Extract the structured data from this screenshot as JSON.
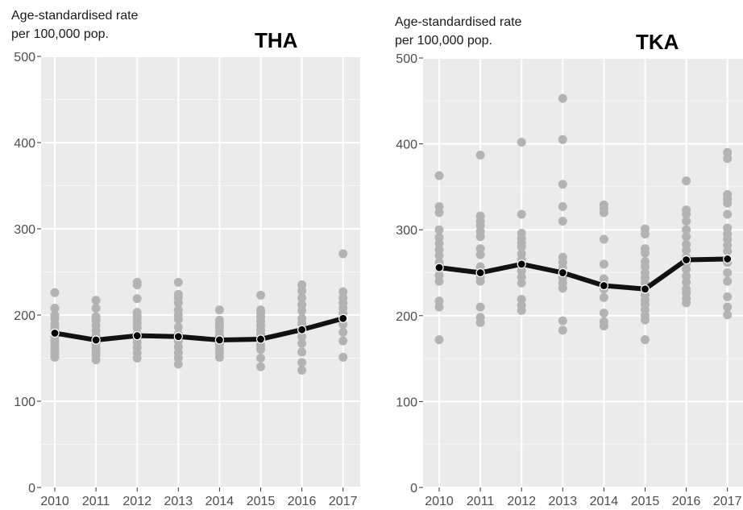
{
  "chart_data": [
    {
      "type": "line",
      "title": "THA",
      "ylabel_line1": "Age-standardised rate",
      "ylabel_line2": "per 100,000 pop.",
      "ylim": [
        0,
        500
      ],
      "yticks": [
        "0",
        "100",
        "200",
        "300",
        "400",
        "500"
      ],
      "categories": [
        "2010",
        "2011",
        "2012",
        "2013",
        "2014",
        "2015",
        "2016",
        "2017"
      ],
      "grid": true,
      "series": [
        {
          "kind": "line",
          "color": "#111111",
          "values": [
            179,
            171,
            176,
            175,
            171,
            172,
            183,
            196
          ]
        },
        {
          "kind": "points",
          "color": "#b3b3b3",
          "values": [
            [
              226,
              208,
              200,
              196,
              190,
              186,
              182,
              175,
              170,
              166,
              162,
              158,
              155,
              151
            ],
            [
              217,
              208,
              198,
              194,
              188,
              182,
              176,
              171,
              166,
              162,
              158,
              154,
              148
            ],
            [
              238,
              235,
              219,
              203,
              199,
              195,
              190,
              185,
              178,
              173,
              168,
              162,
              156,
              150
            ],
            [
              238,
              224,
              220,
              214,
              206,
              200,
              195,
              186,
              178,
              170,
              163,
              156,
              150,
              143
            ],
            [
              206,
              194,
              190,
              186,
              181,
              176,
              170,
              166,
              161,
              156,
              151
            ],
            [
              223,
              206,
              203,
              198,
              193,
              188,
              183,
              178,
              171,
              165,
              160,
              150,
              140
            ],
            [
              235,
              228,
              220,
              212,
              205,
              196,
              190,
              183,
              175,
              167,
              157,
              145,
              136
            ],
            [
              271,
              227,
              220,
              214,
              208,
              202,
              196,
              189,
              180,
              170,
              151
            ]
          ]
        }
      ]
    },
    {
      "type": "line",
      "title": "TKA",
      "ylabel_line1": "Age-standardised rate",
      "ylabel_line2": "per 100,000 pop.",
      "ylim": [
        0,
        500
      ],
      "yticks": [
        "0",
        "100",
        "200",
        "300",
        "400",
        "500"
      ],
      "categories": [
        "2010",
        "2011",
        "2012",
        "2013",
        "2014",
        "2015",
        "2016",
        "2017"
      ],
      "grid": true,
      "series": [
        {
          "kind": "line",
          "color": "#111111",
          "values": [
            256,
            250,
            260,
            250,
            235,
            231,
            265,
            266
          ]
        },
        {
          "kind": "points",
          "color": "#b3b3b3",
          "values": [
            [
              363,
              327,
              320,
              300,
              291,
              284,
              277,
              270,
              262,
              255,
              247,
              240,
              217,
              210,
              172
            ],
            [
              387,
              316,
              310,
              305,
              298,
              292,
              278,
              271,
              257,
              245,
              240,
              210,
              198,
              192
            ],
            [
              402,
              318,
              296,
              290,
              285,
              280,
              272,
              265,
              258,
              252,
              245,
              238,
              219,
              212,
              206
            ],
            [
              453,
              405,
              353,
              327,
              310,
              268,
              262,
              256,
              249,
              244,
              238,
              232,
              194,
              183
            ],
            [
              329,
              325,
              320,
              289,
              260,
              243,
              237,
              231,
              221,
              203,
              193,
              188
            ],
            [
              301,
              295,
              278,
              273,
              263,
              257,
              250,
              244,
              238,
              230,
              224,
              218,
              213,
              207,
              200,
              195,
              172
            ],
            [
              357,
              323,
              318,
              310,
              300,
              292,
              283,
              276,
              268,
              261,
              254,
              246,
              239,
              231,
              226,
              220,
              215
            ],
            [
              390,
              383,
              341,
              336,
              331,
              318,
              302,
              295,
              289,
              282,
              275,
              262,
              250,
              240,
              222,
              210,
              201
            ]
          ]
        }
      ]
    }
  ]
}
